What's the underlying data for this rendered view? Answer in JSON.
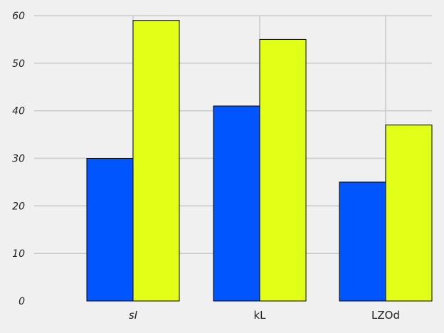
{
  "chart_data": {
    "type": "bar",
    "categories": [
      "sI",
      "kL",
      "LZOd"
    ],
    "series": [
      {
        "values": [
          30,
          41,
          25
        ],
        "color": "#0055ff"
      },
      {
        "values": [
          59,
          55,
          37
        ],
        "color": "#e2ff17"
      }
    ],
    "ylim": [
      0,
      60
    ],
    "yticks": [
      "0",
      "10",
      "20",
      "30",
      "40",
      "50",
      "60"
    ],
    "grid": true,
    "background": "#f0f0f0",
    "grid_color": "#cbcbcb",
    "edge_color": "#000000"
  }
}
